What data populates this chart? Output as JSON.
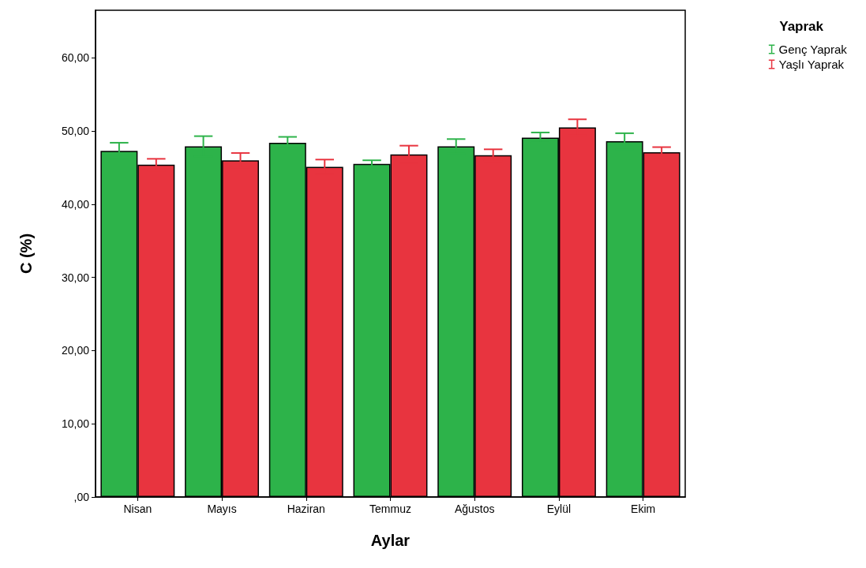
{
  "chart_data": {
    "type": "bar",
    "xlabel": "Aylar",
    "ylabel": "C (%)",
    "legend_title": "Yaprak",
    "categories": [
      "Nisan",
      "Mayıs",
      "Haziran",
      "Temmuz",
      "Ağustos",
      "Eylül",
      "Ekim"
    ],
    "series": [
      {
        "name": "Genç Yaprak",
        "color": "#2db34a",
        "values": [
          47.3,
          47.9,
          48.4,
          45.5,
          47.9,
          49.1,
          48.6
        ],
        "errors": [
          1.1,
          1.4,
          0.8,
          0.5,
          1.0,
          0.7,
          1.1
        ]
      },
      {
        "name": "Yaşlı Yaprak",
        "color": "#e8343f",
        "values": [
          45.4,
          46.0,
          45.1,
          46.8,
          46.7,
          50.5,
          47.1
        ],
        "errors": [
          0.8,
          1.0,
          1.0,
          1.2,
          0.8,
          1.1,
          0.7
        ]
      }
    ],
    "ylim": [
      0,
      66.5
    ],
    "yticks": [
      {
        "value": 0,
        "label": ",00"
      },
      {
        "value": 10,
        "label": "10,00"
      },
      {
        "value": 20,
        "label": "20,00"
      },
      {
        "value": 30,
        "label": "30,00"
      },
      {
        "value": 40,
        "label": "40,00"
      },
      {
        "value": 50,
        "label": "50,00"
      },
      {
        "value": 60,
        "label": "60,00"
      }
    ],
    "grid": false,
    "legend": "top right"
  }
}
